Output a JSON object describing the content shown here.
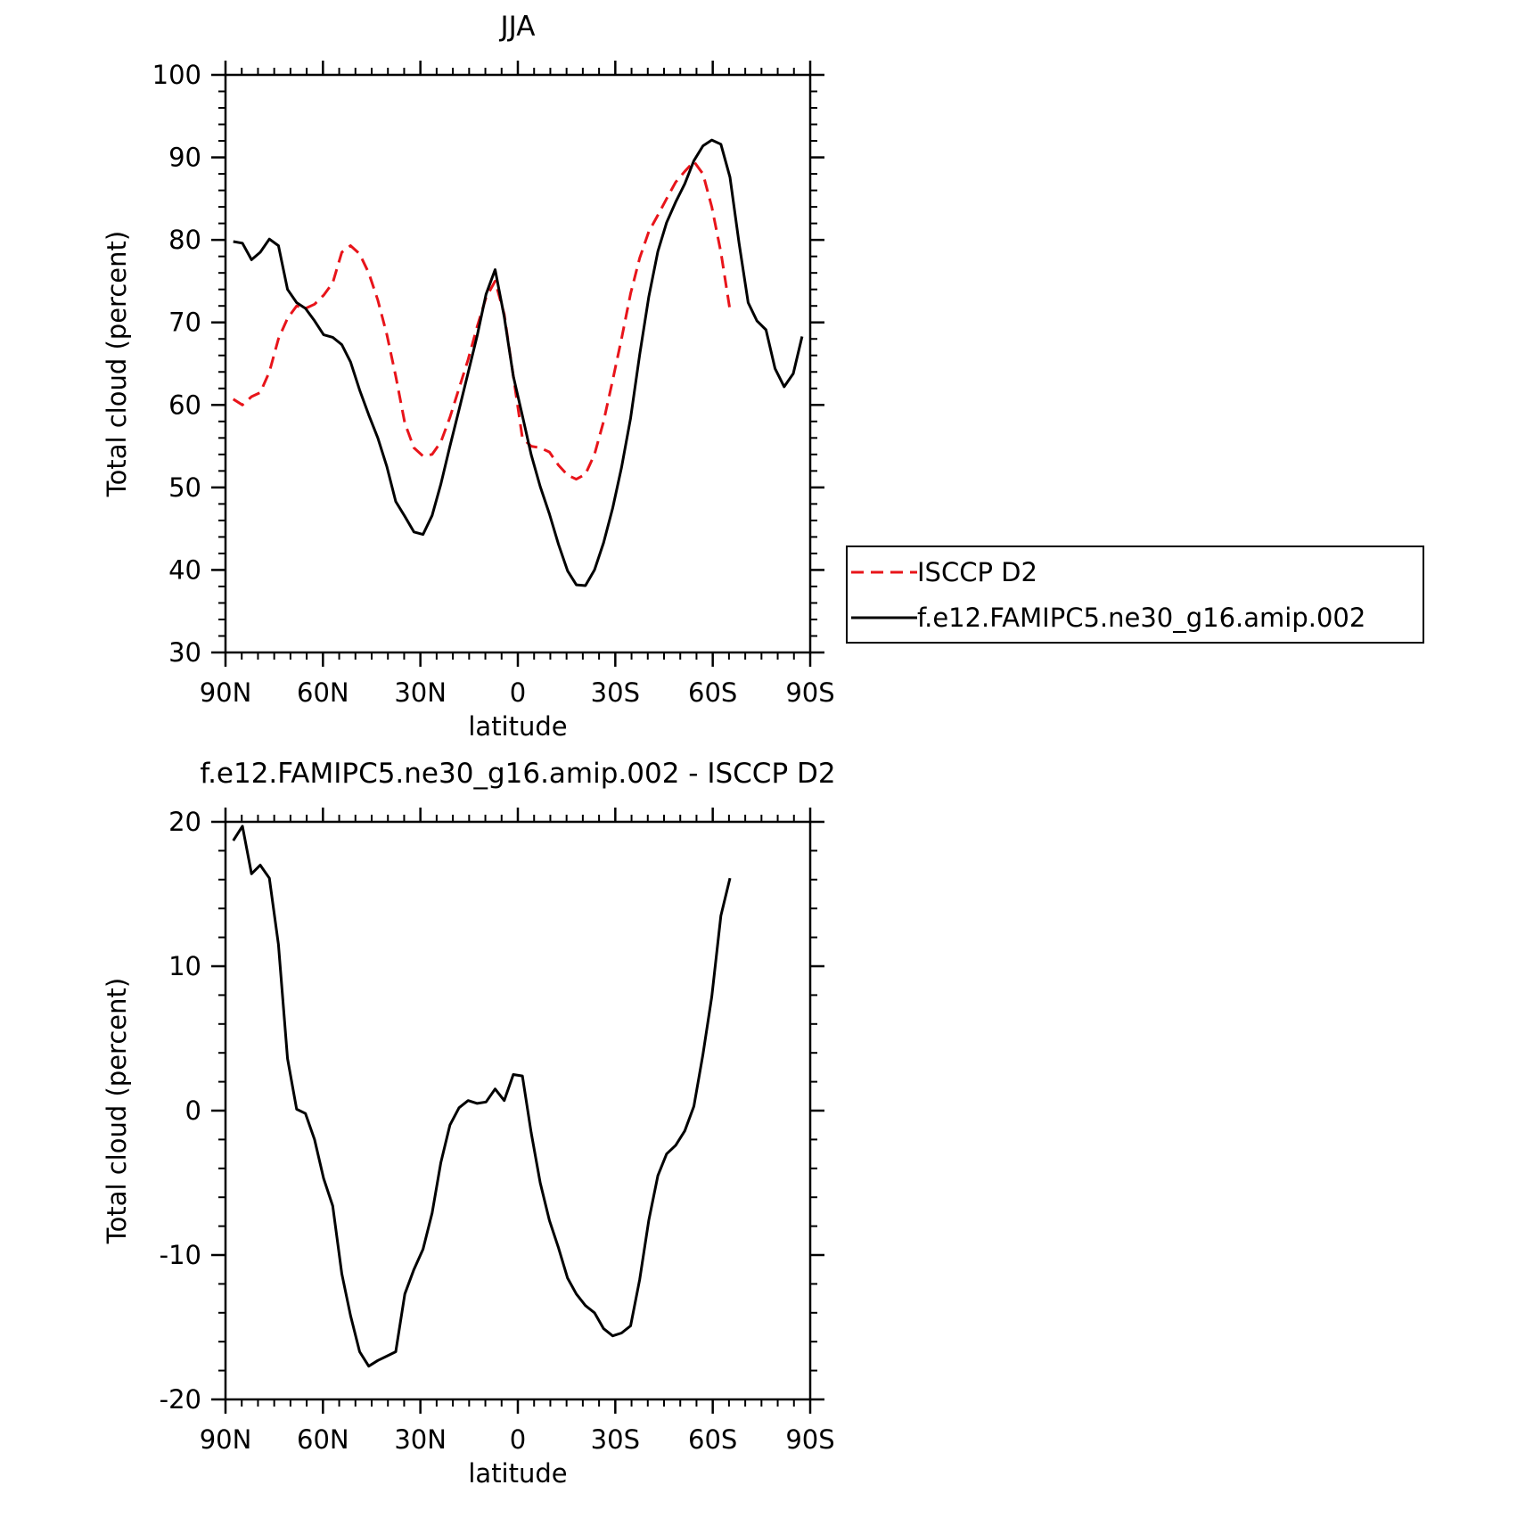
{
  "chart_data": [
    {
      "type": "line",
      "title": "JJA",
      "xlabel": "latitude",
      "ylabel": "Total cloud (percent)",
      "x": [
        87.6,
        84.8,
        82.0,
        79.3,
        76.5,
        73.7,
        70.9,
        68.1,
        65.4,
        62.6,
        59.8,
        57.0,
        54.2,
        51.5,
        48.7,
        45.9,
        43.1,
        40.3,
        37.6,
        34.8,
        32.0,
        29.2,
        26.4,
        23.7,
        20.9,
        18.1,
        15.3,
        12.5,
        9.8,
        7.0,
        4.2,
        1.4,
        -1.4,
        -4.1,
        -6.9,
        -9.7,
        -12.5,
        -15.3,
        -18.0,
        -20.8,
        -23.6,
        -26.4,
        -29.2,
        -31.9,
        -34.7,
        -37.5,
        -40.3,
        -43.1,
        -45.8,
        -48.6,
        -51.4,
        -54.2,
        -57.0,
        -59.7,
        -62.5,
        -65.3,
        -68.1,
        -70.9,
        -73.6,
        -76.4,
        -79.2,
        -82.0,
        -84.8,
        -87.5
      ],
      "series": [
        {
          "name": "ISCCP D2",
          "color": "#e8141a",
          "dashed": true,
          "values": [
            60.7,
            60,
            61,
            61.5,
            64,
            68,
            70.5,
            72,
            71.7,
            72.2,
            73.3,
            74.8,
            78.5,
            79.3,
            78.3,
            76,
            72.7,
            68.5,
            63.5,
            57.8,
            54.8,
            53.8,
            54,
            55.5,
            58.5,
            62,
            65.5,
            69.5,
            73,
            75,
            71,
            63.5,
            56,
            55,
            54.8,
            54.3,
            52.7,
            51.5,
            51,
            51.6,
            54,
            58,
            63,
            68,
            73.5,
            77.8,
            81,
            83,
            85,
            87,
            88.3,
            89.5,
            88,
            84,
            78.5,
            71.5,
            null,
            null,
            null,
            null,
            null,
            null,
            null,
            null
          ]
        },
        {
          "name": "f.e12.FAMIPC5.ne30_g16.amip.002",
          "color": "#000000",
          "dashed": false,
          "values": [
            79.8,
            79.6,
            77.6,
            78.5,
            80.1,
            79.3,
            74.0,
            72.4,
            71.7,
            70.2,
            68.5,
            68.2,
            67.3,
            65.2,
            61.8,
            58.8,
            56.0,
            52.5,
            48.3,
            46.5,
            44.6,
            44.3,
            46.6,
            50.4,
            55.0,
            59.4,
            63.9,
            68.4,
            73.4,
            76.4,
            70.7,
            63.5,
            58.7,
            54.0,
            50.1,
            46.8,
            43.1,
            39.9,
            38.2,
            38.1,
            40.0,
            43.3,
            47.5,
            52.4,
            58.4,
            66.1,
            73.1,
            78.6,
            82.1,
            84.6,
            86.8,
            89.6,
            91.4,
            92.1,
            91.6,
            87.6,
            79.6,
            72.4,
            70.2,
            69.1,
            64.4,
            62.2,
            63.8,
            68.3
          ]
        }
      ],
      "xlim": [
        90,
        -90
      ],
      "xticks": [
        {
          "value": 90,
          "label": "90N"
        },
        {
          "value": 60,
          "label": "60N"
        },
        {
          "value": 30,
          "label": "30N"
        },
        0,
        {
          "value": -30,
          "label": "30S"
        },
        {
          "value": -60,
          "label": "60S"
        },
        {
          "value": -90,
          "label": "90S"
        }
      ],
      "ylim": [
        30,
        100
      ],
      "yticks": [
        30,
        40,
        50,
        60,
        70,
        80,
        90,
        100
      ],
      "grid": false,
      "legend": "right"
    },
    {
      "type": "line",
      "title": "f.e12.FAMIPC5.ne30_g16.amip.002 - ISCCP D2",
      "xlabel": "latitude",
      "ylabel": "Total cloud (percent)",
      "x": [
        87.6,
        84.8,
        82.0,
        79.3,
        76.5,
        73.7,
        70.9,
        68.1,
        65.4,
        62.6,
        59.8,
        57.0,
        54.2,
        51.5,
        48.7,
        45.9,
        43.1,
        40.3,
        37.6,
        34.8,
        32.0,
        29.2,
        26.4,
        23.7,
        20.9,
        18.1,
        15.3,
        12.5,
        9.8,
        7.0,
        4.2,
        1.4,
        -1.4,
        -4.1,
        -6.9,
        -9.7,
        -12.5,
        -15.3,
        -18.0,
        -20.8,
        -23.6,
        -26.4,
        -29.2,
        -31.9,
        -34.7,
        -37.5,
        -40.3,
        -43.1,
        -45.8,
        -48.6,
        -51.4,
        -54.2,
        -57.0,
        -59.7,
        -62.5,
        -65.3,
        -68.1,
        -70.9,
        -73.6,
        -76.4,
        -79.2,
        -82.0,
        -84.8,
        -87.5
      ],
      "series": [
        {
          "color": "#000000",
          "dashed": false,
          "values": [
            18.7,
            19.7,
            16.4,
            17,
            16.1,
            11.5,
            3.6,
            0.1,
            -0.2,
            -2,
            -4.7,
            -6.6,
            -11.3,
            -14.2,
            -16.7,
            -17.7,
            -17.3,
            -17,
            -16.7,
            -12.7,
            -11,
            -9.6,
            -7.1,
            -3.6,
            -1,
            0.2,
            0.7,
            0.5,
            0.6,
            1.5,
            0.7,
            2.5,
            2.4,
            -1.5,
            -5,
            -7.6,
            -9.5,
            -11.6,
            -12.7,
            -13.5,
            -14,
            -15.1,
            -15.6,
            -15.4,
            -14.9,
            -11.7,
            -7.6,
            -4.5,
            -3,
            -2.4,
            -1.4,
            0.3,
            3.9,
            7.9,
            13.5,
            16.1,
            null,
            null,
            null,
            null,
            null,
            null,
            null,
            null
          ]
        }
      ],
      "xlim": [
        90,
        -90
      ],
      "xticks": [
        {
          "value": 90,
          "label": "90N"
        },
        {
          "value": 60,
          "label": "60N"
        },
        {
          "value": 30,
          "label": "30N"
        },
        0,
        {
          "value": -30,
          "label": "30S"
        },
        {
          "value": -60,
          "label": "60S"
        },
        {
          "value": -90,
          "label": "90S"
        }
      ],
      "ylim": [
        -20,
        20
      ],
      "yticks": [
        -20,
        -10,
        0,
        10,
        20
      ],
      "grid": false
    }
  ]
}
